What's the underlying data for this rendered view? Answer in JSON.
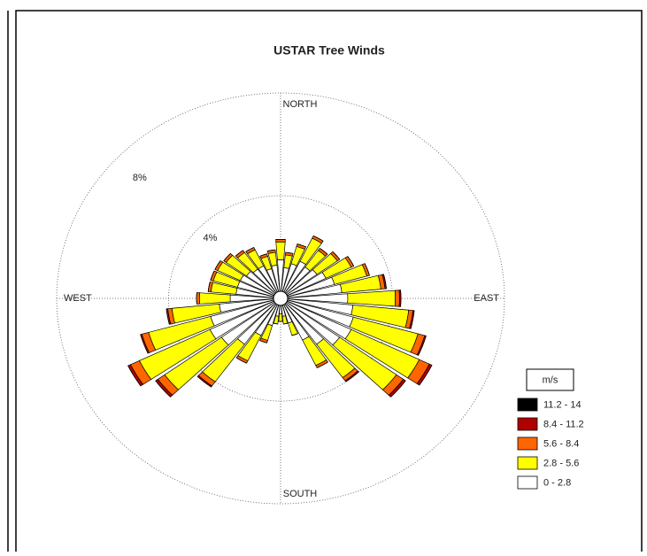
{
  "chart_data": {
    "type": "windrose",
    "title": "USTAR Tree Winds",
    "compass_labels": [
      "NORTH",
      "EAST",
      "SOUTH",
      "WEST"
    ],
    "directions": [
      0,
      10,
      20,
      30,
      40,
      50,
      60,
      70,
      80,
      90,
      100,
      110,
      120,
      130,
      140,
      150,
      160,
      170,
      180,
      190,
      200,
      210,
      220,
      230,
      240,
      250,
      260,
      270,
      280,
      290,
      300,
      310,
      320,
      330,
      340,
      350
    ],
    "rlim": [
      0,
      8
    ],
    "rticks": [
      {
        "value": 4,
        "label": "4%"
      },
      {
        "value": 8,
        "label": "8%"
      }
    ],
    "grid": true,
    "legend_title": "m/s",
    "legend_position": "lower right",
    "series": [
      {
        "name": "0 - 2.8",
        "color": "#ffffff",
        "values": [
          1.5,
          1.2,
          1.4,
          1.6,
          1.5,
          1.6,
          1.8,
          2.0,
          2.2,
          2.4,
          2.6,
          2.7,
          2.8,
          2.6,
          2.2,
          1.8,
          1.0,
          0.7,
          0.6,
          0.7,
          1.1,
          1.6,
          2.2,
          2.6,
          2.8,
          2.6,
          2.2,
          1.8,
          1.6,
          1.6,
          1.6,
          1.5,
          1.4,
          1.4,
          1.2,
          1.3
        ]
      },
      {
        "name": "2.8 - 5.6",
        "color": "#ffff00",
        "values": [
          0.7,
          0.5,
          0.7,
          1.0,
          0.8,
          0.9,
          1.0,
          1.2,
          1.4,
          1.7,
          2.0,
          2.4,
          2.7,
          2.5,
          1.6,
          1.1,
          0.5,
          0.3,
          0.3,
          0.3,
          0.6,
          1.1,
          1.8,
          2.5,
          2.8,
          2.3,
          1.7,
          1.1,
          0.9,
          0.9,
          0.9,
          0.9,
          0.8,
          0.7,
          0.5,
          0.5
        ]
      },
      {
        "name": "5.6 - 8.4",
        "color": "#ff6600",
        "values": [
          0.1,
          0.1,
          0.1,
          0.1,
          0.1,
          0.1,
          0.1,
          0.1,
          0.15,
          0.15,
          0.15,
          0.25,
          0.4,
          0.3,
          0.15,
          0.1,
          0,
          0,
          0,
          0,
          0.1,
          0.1,
          0.2,
          0.3,
          0.35,
          0.25,
          0.15,
          0.1,
          0.1,
          0.1,
          0.1,
          0.1,
          0.1,
          0.1,
          0.1,
          0.1
        ]
      },
      {
        "name": "8.4 - 11.2",
        "color": "#b00000",
        "values": [
          0,
          0,
          0,
          0,
          0,
          0,
          0,
          0,
          0.05,
          0.05,
          0.05,
          0.05,
          0.1,
          0.1,
          0.05,
          0,
          0,
          0,
          0,
          0,
          0,
          0,
          0.05,
          0.1,
          0.1,
          0.05,
          0.05,
          0,
          0,
          0,
          0,
          0,
          0,
          0,
          0,
          0
        ]
      },
      {
        "name": "11.2 - 14",
        "color": "#000000",
        "values": [
          0,
          0,
          0,
          0,
          0,
          0,
          0,
          0,
          0,
          0,
          0,
          0,
          0,
          0,
          0,
          0,
          0,
          0,
          0,
          0,
          0,
          0,
          0,
          0,
          0,
          0,
          0,
          0,
          0,
          0,
          0,
          0,
          0,
          0,
          0,
          0
        ]
      }
    ]
  }
}
